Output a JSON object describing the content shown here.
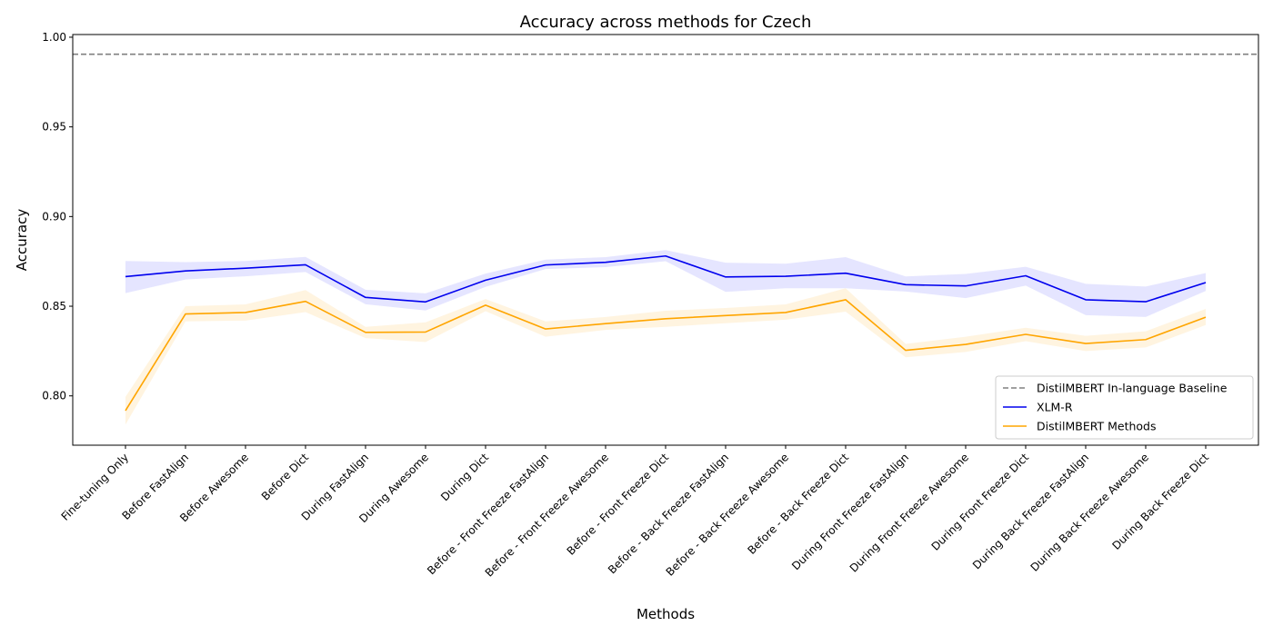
{
  "chart_data": {
    "type": "line",
    "title": "Accuracy across methods for Czech",
    "xlabel": "Methods",
    "ylabel": "Accuracy",
    "ylim": [
      0.7725,
      1.0015
    ],
    "yticks": [
      "0.80",
      "0.85",
      "0.90",
      "0.95",
      "1.00"
    ],
    "ytick_values": [
      0.8,
      0.85,
      0.9,
      0.95,
      1.0
    ],
    "grid": false,
    "legend_position": "bottom-right",
    "categories": [
      "Fine-tuning Only",
      "Before FastAlign",
      "Before Awesome",
      "Before Dict",
      "During FastAlign",
      "During Awesome",
      "During Dict",
      "Before - Front Freeze FastAlign",
      "Before - Front Freeze Awesome",
      "Before - Front Freeze Dict",
      "Before - Back Freeze FastAlign",
      "Before - Back Freeze Awesome",
      "Before - Back Freeze Dict",
      "During Front Freeze FastAlign",
      "During Front Freeze Awesome",
      "During Front Freeze Dict",
      "During Back Freeze FastAlign",
      "During Back Freeze Awesome",
      "During Back Freeze Dict"
    ],
    "baseline": {
      "name": "DistilMBERT In-language Baseline",
      "value": 0.9905,
      "color": "#808080",
      "style": "dashed"
    },
    "series": [
      {
        "name": "XLM-R",
        "color": "#0000ee",
        "band_color": "#0000ff",
        "values": [
          0.8665,
          0.8697,
          0.8712,
          0.8731,
          0.8549,
          0.8524,
          0.8645,
          0.873,
          0.8745,
          0.878,
          0.8663,
          0.8667,
          0.8684,
          0.862,
          0.8613,
          0.867,
          0.8536,
          0.8525,
          0.8632
        ],
        "lower": [
          0.8573,
          0.8649,
          0.8667,
          0.8691,
          0.8511,
          0.8476,
          0.8608,
          0.8707,
          0.8718,
          0.8751,
          0.858,
          0.86,
          0.86,
          0.8582,
          0.8545,
          0.8615,
          0.845,
          0.844,
          0.8585
        ],
        "upper": [
          0.8752,
          0.8746,
          0.8752,
          0.8775,
          0.8592,
          0.8572,
          0.8682,
          0.876,
          0.8774,
          0.8813,
          0.8743,
          0.8737,
          0.8774,
          0.8666,
          0.868,
          0.872,
          0.8625,
          0.861,
          0.8685
        ]
      },
      {
        "name": "DistilMBERT Methods",
        "color": "#ffa500",
        "band_color": "#ffa500",
        "values": [
          0.7918,
          0.8457,
          0.8465,
          0.8527,
          0.8354,
          0.8356,
          0.8506,
          0.8373,
          0.8403,
          0.843,
          0.8448,
          0.8465,
          0.8536,
          0.8254,
          0.8287,
          0.8343,
          0.8292,
          0.8314,
          0.8439
        ],
        "lower": [
          0.784,
          0.8415,
          0.842,
          0.8467,
          0.8322,
          0.83,
          0.8472,
          0.833,
          0.8368,
          0.8385,
          0.8405,
          0.8425,
          0.847,
          0.8215,
          0.8245,
          0.8305,
          0.825,
          0.827,
          0.8395
        ],
        "upper": [
          0.7995,
          0.85,
          0.851,
          0.859,
          0.8385,
          0.841,
          0.854,
          0.8415,
          0.844,
          0.8475,
          0.849,
          0.851,
          0.86,
          0.829,
          0.833,
          0.838,
          0.8335,
          0.836,
          0.8485
        ]
      }
    ]
  }
}
